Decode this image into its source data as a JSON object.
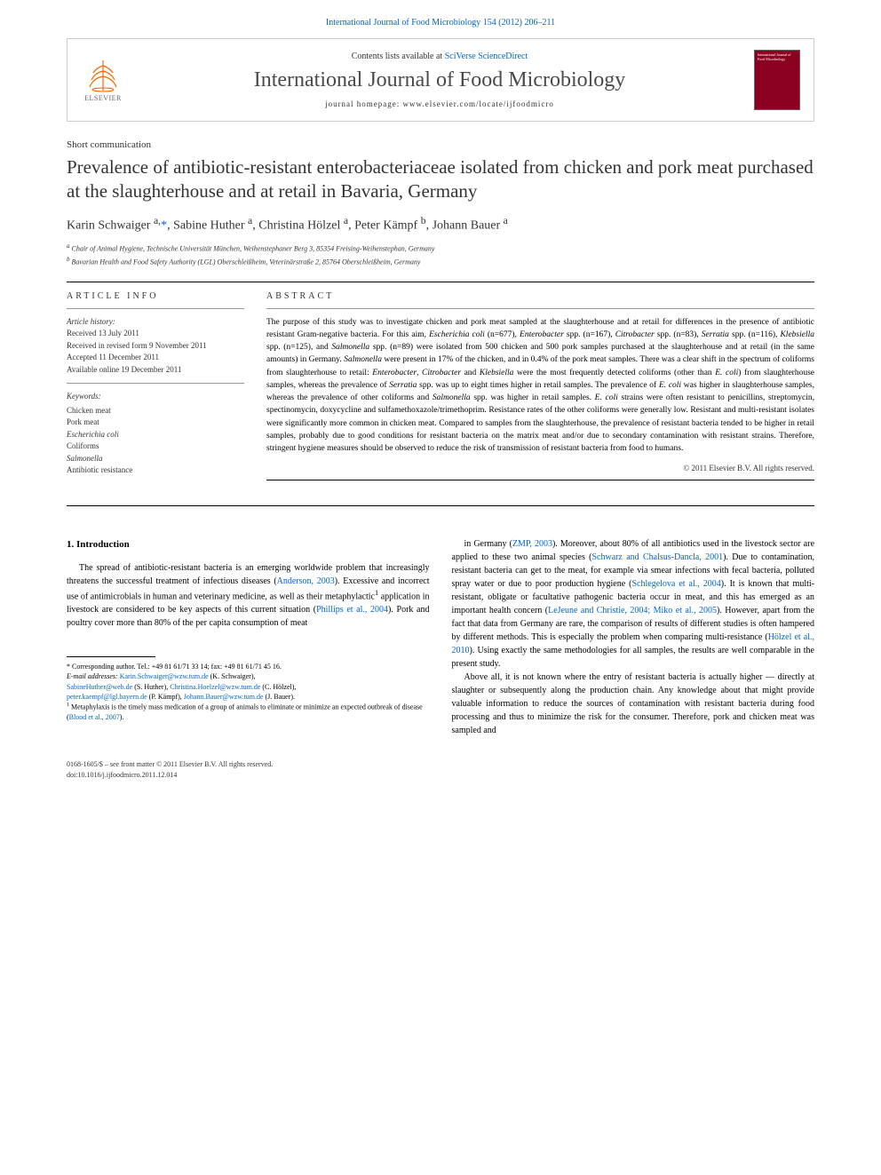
{
  "top_link": "International Journal of Food Microbiology 154 (2012) 206–211",
  "header": {
    "contents_prefix": "Contents lists available at ",
    "contents_link": "SciVerse ScienceDirect",
    "journal_title": "International Journal of Food Microbiology",
    "homepage_prefix": "journal homepage: ",
    "homepage_url": "www.elsevier.com/locate/ijfoodmicro",
    "elsevier_label": "ELSEVIER"
  },
  "article": {
    "commtype": "Short communication",
    "title": "Prevalence of antibiotic-resistant enterobacteriaceae isolated from chicken and pork meat purchased at the slaughterhouse and at retail in Bavaria, Germany",
    "authors_html": "Karin Schwaiger <sup>a,</sup><span class=\"star\">*</span>, Sabine Huther <sup>a</sup>, Christina Hölzel <sup>a</sup>, Peter Kämpf <sup>b</sup>, Johann Bauer <sup>a</sup>",
    "affiliations": [
      {
        "sup": "a",
        "text": "Chair of Animal Hygiene, Technische Universität München, Weihenstephaner Berg 3, 85354 Freising-Weihenstephan, Germany"
      },
      {
        "sup": "b",
        "text": "Bavarian Health and Food Safety Authority (LGL) Oberschleißheim, Veterinärstraße 2, 85764 Oberschleißheim, Germany"
      }
    ]
  },
  "info": {
    "header": "article info",
    "history_label": "Article history:",
    "history": [
      "Received 13 July 2011",
      "Received in revised form 9 November 2011",
      "Accepted 11 December 2011",
      "Available online 19 December 2011"
    ],
    "keywords_label": "Keywords:",
    "keywords": [
      "Chicken meat",
      "Pork meat",
      "Escherichia coli",
      "Coliforms",
      "Salmonella",
      "Antibiotic resistance"
    ]
  },
  "abstract": {
    "header": "abstract",
    "text": "The purpose of this study was to investigate chicken and pork meat sampled at the slaughterhouse and at retail for differences in the presence of antibiotic resistant Gram-negative bacteria. For this aim, <span class=\"italic\">Escherichia coli</span> (n=677), <span class=\"italic\">Enterobacter</span> spp. (n=167), <span class=\"italic\">Citrobacter</span> spp. (n=83), <span class=\"italic\">Serratia</span> spp. (n=116), <span class=\"italic\">Klebsiella</span> spp. (n=125), and <span class=\"italic\">Salmonella</span> spp. (n=89) were isolated from 500 chicken and 500 pork samples purchased at the slaughterhouse and at retail (in the same amounts) in Germany. <span class=\"italic\">Salmonella</span> were present in 17% of the chicken, and in 0.4% of the pork meat samples. There was a clear shift in the spectrum of coliforms from slaughterhouse to retail: <span class=\"italic\">Enterobacter</span>, <span class=\"italic\">Citrobacter</span> and <span class=\"italic\">Klebsiella</span> were the most frequently detected coliforms (other than <span class=\"italic\">E. coli</span>) from slaughterhouse samples, whereas the prevalence of <span class=\"italic\">Serratia</span> spp. was up to eight times higher in retail samples. The prevalence of <span class=\"italic\">E. coli</span> was higher in slaughterhouse samples, whereas the prevalence of other coliforms and <span class=\"italic\">Salmonella</span> spp. was higher in retail samples. <span class=\"italic\">E. coli</span> strains were often resistant to penicillins, streptomycin, spectinomycin, doxycycline and sulfamethoxazole/trimethoprim. Resistance rates of the other coliforms were generally low. Resistant and multi-resistant isolates were significantly more common in chicken meat. Compared to samples from the slaughterhouse, the prevalence of resistant bacteria tended to be higher in retail samples, probably due to good conditions for resistant bacteria on the matrix meat and/or due to secondary contamination with resistant strains. Therefore, stringent hygiene measures should be observed to reduce the risk of transmission of resistant bacteria from food to humans.",
    "copyright": "© 2011 Elsevier B.V. All rights reserved."
  },
  "body": {
    "heading": "1. Introduction",
    "col1_p1": "The spread of antibiotic-resistant bacteria is an emerging worldwide problem that increasingly threatens the successful treatment of infectious diseases (<span class=\"cite\">Anderson, 2003</span>). Excessive and incorrect use of antimicrobials in human and veterinary medicine, as well as their metaphylactic<sup>1</sup> application in livestock are considered to be key aspects of this current situation (<span class=\"cite\">Phillips et al., 2004</span>). Pork and poultry cover more than 80% of the per capita consumption of meat",
    "col2_p1": "in Germany (<span class=\"cite\">ZMP, 2003</span>). Moreover, about 80% of all antibiotics used in the livestock sector are applied to these two animal species (<span class=\"cite\">Schwarz and Chalsus-Dancla, 2001</span>). Due to contamination, resistant bacteria can get to the meat, for example via smear infections with fecal bacteria, polluted spray water or due to poor production hygiene (<span class=\"cite\">Schlegelova et al., 2004</span>). It is known that multi-resistant, obligate or facultative pathogenic bacteria occur in meat, and this has emerged as an important health concern (<span class=\"cite\">LeJeune and Christie, 2004; Miko et al., 2005</span>). However, apart from the fact that data from Germany are rare, the comparison of results of different studies is often hampered by different methods. This is especially the problem when comparing multi-resistance (<span class=\"cite\">Hölzel et al., 2010</span>). Using exactly the same methodologies for all samples, the results are well comparable in the present study.",
    "col2_p2": "Above all, it is not known where the entry of resistant bacteria is actually higher — directly at slaughter or subsequently along the production chain. Any knowledge about that might provide valuable information to reduce the sources of contamination with resistant bacteria during food processing and thus to minimize the risk for the consumer. Therefore, pork and chicken meat was sampled and"
  },
  "footnotes": {
    "corr": "* Corresponding author. Tel.: +49 81 61/71 33 14; fax: +49 81 61/71 45 16.",
    "emails_label": "E-mail addresses: ",
    "emails": [
      {
        "addr": "Karin.Schwaiger@wzw.tum.de",
        "name": "(K. Schwaiger),"
      },
      {
        "addr": "SabineHuther@web.de",
        "name": "(S. Huther),"
      },
      {
        "addr": "Christina.Hoelzel@wzw.tum.de",
        "name": "(C. Hölzel),"
      },
      {
        "addr": "peter.kaempf@lgl.bayern.de",
        "name": "(P. Kämpf),"
      },
      {
        "addr": "Johann.Bauer@wzw.tum.de",
        "name": "(J. Bauer)."
      }
    ],
    "note1": "Metaphylaxis is the timely mass medication of a group of animals to eliminate or minimize an expected outbreak of disease (",
    "note1_cite": "Blood et al., 2007",
    "note1_end": ")."
  },
  "bottom": {
    "line1": "0168-1605/$ – see front matter © 2011 Elsevier B.V. All rights reserved.",
    "line2": "doi:10.1016/j.ijfoodmicro.2011.12.014"
  },
  "colors": {
    "link": "#0066cc",
    "text": "#000000",
    "elsevier_orange": "#ff6600",
    "cover_bg": "#8b0020"
  }
}
